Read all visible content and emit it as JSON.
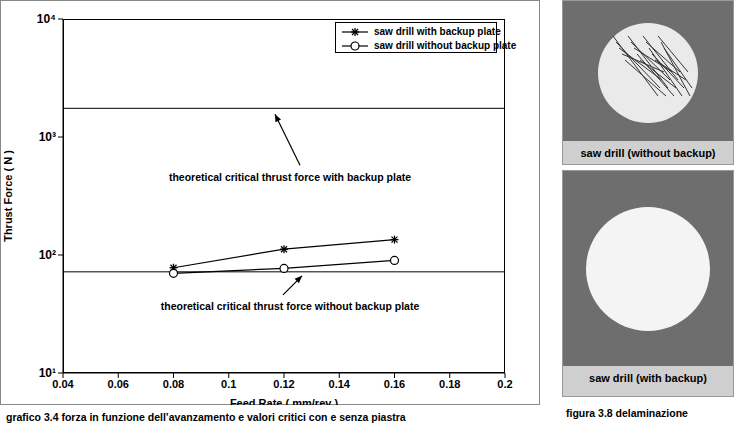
{
  "chart_data": {
    "type": "line",
    "caption": "grafico 3.4 forza in funzione dell’avanzamento e valori critici con e senza piastra",
    "x_label": "Feed Rate  ( mm/rev )",
    "y_label": "Thrust  Force  ( N )",
    "log": "y",
    "xlim": [
      0.04,
      0.2
    ],
    "xticks": [
      0.04,
      0.06,
      0.08,
      0.1,
      0.12,
      0.14,
      0.16,
      0.18,
      0.2
    ],
    "ylim": [
      10,
      10000
    ],
    "yticks": [
      {
        "value": 10,
        "label": "10¹"
      },
      {
        "value": 100,
        "label": "10²"
      },
      {
        "value": 1000,
        "label": "10³"
      },
      {
        "value": 10000,
        "label": "10⁴"
      }
    ],
    "legend": "upper right",
    "x": [
      0.08,
      0.12,
      0.16
    ],
    "series": [
      {
        "name": "saw drill with backup plate",
        "color": "#000000",
        "marker": "star",
        "values": [
          78,
          112,
          135
        ]
      },
      {
        "name": "saw drill without backup plate",
        "color": "#000000",
        "marker": "circle",
        "values": [
          70,
          77,
          90
        ]
      }
    ],
    "reference_lines": [
      {
        "value": 1750,
        "label": "theoretical critical thrust force with backup plate"
      },
      {
        "value": 72,
        "label": "theoretical critical thrust force without backup plate"
      }
    ]
  },
  "figure": {
    "caption": "figura 3.8 delaminazione",
    "images": [
      {
        "label": "saw drill (without backup)"
      },
      {
        "label": "saw drill (with backup)"
      }
    ]
  }
}
